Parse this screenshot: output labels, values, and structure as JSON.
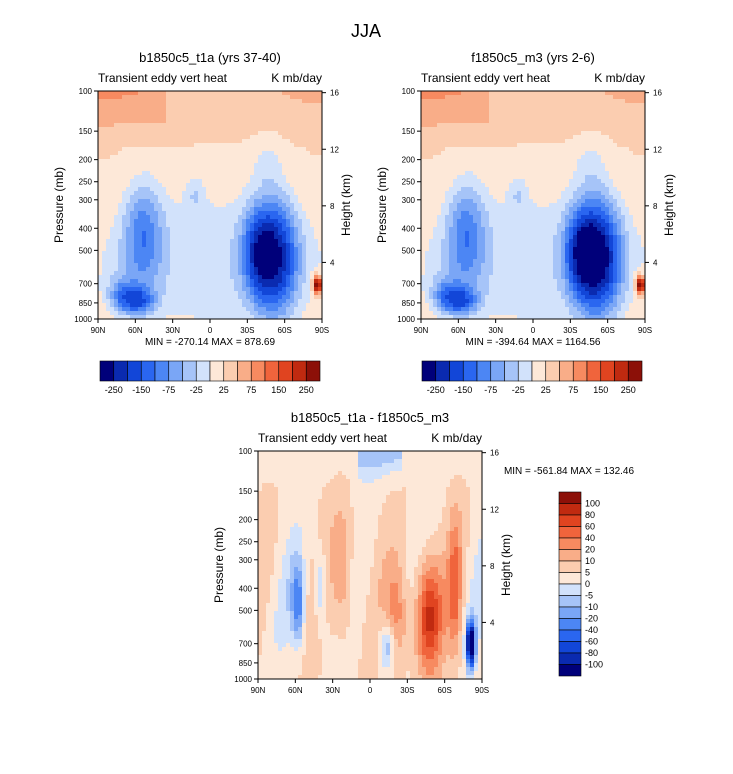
{
  "title": "JJA",
  "colors": {
    "levels_neg": [
      "#00007a",
      "#0a2ab0",
      "#1246d8",
      "#2a66f0",
      "#4c86f4",
      "#7aa6f6",
      "#a6c4f8",
      "#d2e2fb"
    ],
    "levels_pos": [
      "#fde8d8",
      "#fbcdb0",
      "#f9ad88",
      "#f78a60",
      "#f0643c",
      "#e04420",
      "#c02a10",
      "#8c1008"
    ],
    "frame": "#000000"
  },
  "chart_data": [
    {
      "type": "heatmap",
      "title": "b1850c5_t1a (yrs 37-40)",
      "left_label": "Transient eddy vert heat",
      "right_label": "K mb/day",
      "xlabel": "",
      "ylabel": "Pressure (mb)",
      "ylabel_right": "Height (km)",
      "x_ticks": [
        "90N",
        "60N",
        "30N",
        "0",
        "30S",
        "60S",
        "90S"
      ],
      "y_ticks": [
        "100",
        "150",
        "200",
        "250",
        "300",
        "400",
        "500",
        "700",
        "850",
        "1000"
      ],
      "y_ticks_right": [
        "16",
        "12",
        "8",
        "4"
      ],
      "ylim": [
        1000,
        100
      ],
      "y_log": true,
      "stats": "MIN = -270.14   MAX = 878.69",
      "colorbar_labels": [
        "-250",
        "-150",
        "-75",
        "-25",
        "25",
        "75",
        "150",
        "250"
      ],
      "colorbar_orientation": "horizontal"
    },
    {
      "type": "heatmap",
      "title": "f1850c5_m3 (yrs 2-6)",
      "left_label": "Transient eddy vert heat",
      "right_label": "K mb/day",
      "xlabel": "",
      "ylabel": "Pressure (mb)",
      "ylabel_right": "Height (km)",
      "x_ticks": [
        "90N",
        "60N",
        "30N",
        "0",
        "30S",
        "60S",
        "90S"
      ],
      "y_ticks": [
        "100",
        "150",
        "200",
        "250",
        "300",
        "400",
        "500",
        "700",
        "850",
        "1000"
      ],
      "y_ticks_right": [
        "16",
        "12",
        "8",
        "4"
      ],
      "ylim": [
        1000,
        100
      ],
      "y_log": true,
      "stats": "MIN = -394.64   MAX = 1164.56",
      "colorbar_labels": [
        "-250",
        "-150",
        "-75",
        "-25",
        "25",
        "75",
        "150",
        "250"
      ],
      "colorbar_orientation": "horizontal"
    },
    {
      "type": "heatmap",
      "title": "b1850c5_t1a - f1850c5_m3",
      "left_label": "Transient eddy vert heat",
      "right_label": "K mb/day",
      "xlabel": "",
      "ylabel": "Pressure (mb)",
      "ylabel_right": "Height (km)",
      "x_ticks": [
        "90N",
        "60N",
        "30N",
        "0",
        "30S",
        "60S",
        "90S"
      ],
      "y_ticks": [
        "100",
        "150",
        "200",
        "250",
        "300",
        "400",
        "500",
        "700",
        "850",
        "1000"
      ],
      "y_ticks_right": [
        "16",
        "12",
        "8",
        "4"
      ],
      "ylim": [
        1000,
        100
      ],
      "y_log": true,
      "stats": "MIN = -561.84   MAX = 132.46",
      "colorbar_labels": [
        "100",
        "80",
        "60",
        "40",
        "20",
        "10",
        "5",
        "0",
        "-5",
        "-10",
        "-20",
        "-40",
        "-60",
        "-80",
        "-100"
      ],
      "colorbar_orientation": "vertical"
    }
  ]
}
